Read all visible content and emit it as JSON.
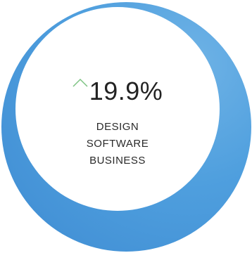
{
  "metric": {
    "value": "19.9%",
    "trend_icon": "chevron-up-icon",
    "trend_color": "#7dc383",
    "caption_lines": [
      "DESIGN",
      "SOFTWARE",
      "BUSINESS"
    ]
  },
  "colors": {
    "ring": "#4f9fde",
    "center": "#ffffff",
    "text": "#222222"
  }
}
